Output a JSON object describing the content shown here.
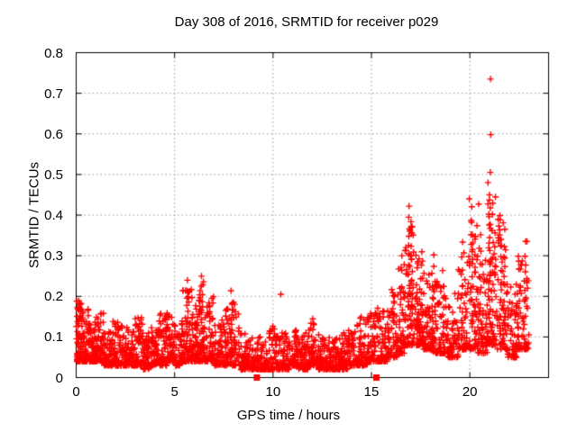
{
  "chart_data": {
    "type": "scatter",
    "title": "Day 308 of 2016, SRMTID for receiver p029",
    "xlabel": "GPS time / hours",
    "ylabel": "SRMTID / TECUs",
    "xlim": [
      0,
      24
    ],
    "ylim": [
      0,
      0.8
    ],
    "x_ticks": [
      {
        "v": 0,
        "label": "0"
      },
      {
        "v": 5,
        "label": "5"
      },
      {
        "v": 10,
        "label": "10"
      },
      {
        "v": 15,
        "label": "15"
      },
      {
        "v": 20,
        "label": "20"
      }
    ],
    "y_ticks": [
      {
        "v": 0.0,
        "label": "0"
      },
      {
        "v": 0.1,
        "label": "0.1"
      },
      {
        "v": 0.2,
        "label": "0.2"
      },
      {
        "v": 0.3,
        "label": "0.3"
      },
      {
        "v": 0.4,
        "label": "0.4"
      },
      {
        "v": 0.5,
        "label": "0.5"
      },
      {
        "v": 0.6,
        "label": "0.6"
      },
      {
        "v": 0.7,
        "label": "0.7"
      },
      {
        "v": 0.8,
        "label": "0.8"
      }
    ],
    "grid": {
      "show": true,
      "style": "dotted",
      "color": "#9a9a9a"
    },
    "frame_color": "#000000",
    "text_color": "#000000",
    "background": "#ffffff",
    "legend": "none",
    "series": [
      {
        "name": "srmtid-scatter",
        "marker": "plus",
        "color": "#ff0000",
        "marker_size": 7,
        "seed": 308,
        "envelope_bins": [
          [
            0.0,
            0.3,
            0.04,
            0.19,
            60
          ],
          [
            0.3,
            0.7,
            0.04,
            0.17,
            65
          ],
          [
            0.7,
            1.0,
            0.04,
            0.14,
            50
          ],
          [
            1.0,
            1.4,
            0.04,
            0.16,
            60
          ],
          [
            1.4,
            1.8,
            0.03,
            0.12,
            55
          ],
          [
            1.8,
            2.2,
            0.03,
            0.14,
            58
          ],
          [
            2.2,
            2.6,
            0.03,
            0.13,
            55
          ],
          [
            2.6,
            3.0,
            0.03,
            0.12,
            55
          ],
          [
            3.0,
            3.4,
            0.03,
            0.15,
            55
          ],
          [
            3.4,
            3.8,
            0.02,
            0.11,
            50
          ],
          [
            3.8,
            4.2,
            0.03,
            0.13,
            55
          ],
          [
            4.2,
            4.6,
            0.03,
            0.17,
            55
          ],
          [
            4.6,
            5.0,
            0.04,
            0.16,
            55
          ],
          [
            5.0,
            5.4,
            0.03,
            0.14,
            50
          ],
          [
            5.4,
            5.9,
            0.04,
            0.22,
            65
          ],
          [
            5.9,
            6.2,
            0.04,
            0.18,
            48
          ],
          [
            6.2,
            6.6,
            0.04,
            0.24,
            58
          ],
          [
            6.6,
            7.0,
            0.04,
            0.2,
            52
          ],
          [
            7.0,
            7.4,
            0.03,
            0.13,
            48
          ],
          [
            7.4,
            7.8,
            0.03,
            0.17,
            52
          ],
          [
            7.8,
            8.3,
            0.03,
            0.19,
            58
          ],
          [
            8.3,
            8.8,
            0.02,
            0.11,
            55
          ],
          [
            8.8,
            9.3,
            0.02,
            0.1,
            55
          ],
          [
            9.3,
            9.8,
            0.02,
            0.1,
            55
          ],
          [
            9.8,
            10.3,
            0.02,
            0.13,
            58
          ],
          [
            10.3,
            10.8,
            0.02,
            0.11,
            58
          ],
          [
            10.8,
            11.3,
            0.03,
            0.12,
            58
          ],
          [
            11.3,
            11.8,
            0.02,
            0.11,
            58
          ],
          [
            11.8,
            12.3,
            0.03,
            0.14,
            58
          ],
          [
            12.3,
            12.8,
            0.02,
            0.11,
            58
          ],
          [
            12.8,
            13.3,
            0.02,
            0.1,
            58
          ],
          [
            13.3,
            13.8,
            0.02,
            0.11,
            55
          ],
          [
            13.8,
            14.3,
            0.03,
            0.13,
            55
          ],
          [
            14.3,
            14.8,
            0.03,
            0.15,
            55
          ],
          [
            14.8,
            15.3,
            0.04,
            0.16,
            58
          ],
          [
            15.3,
            15.8,
            0.04,
            0.18,
            62
          ],
          [
            15.8,
            16.3,
            0.05,
            0.22,
            62
          ],
          [
            16.3,
            16.7,
            0.06,
            0.29,
            58
          ],
          [
            16.7,
            17.2,
            0.08,
            0.4,
            62
          ],
          [
            17.2,
            17.6,
            0.08,
            0.3,
            52
          ],
          [
            17.6,
            18.0,
            0.07,
            0.27,
            48
          ],
          [
            18.0,
            18.4,
            0.06,
            0.28,
            48
          ],
          [
            18.4,
            18.9,
            0.06,
            0.25,
            52
          ],
          [
            18.9,
            19.4,
            0.05,
            0.21,
            52
          ],
          [
            19.4,
            19.9,
            0.07,
            0.32,
            52
          ],
          [
            19.9,
            20.4,
            0.07,
            0.4,
            58
          ],
          [
            20.4,
            20.9,
            0.06,
            0.34,
            58
          ],
          [
            20.9,
            21.4,
            0.08,
            0.45,
            62
          ],
          [
            21.4,
            21.9,
            0.07,
            0.4,
            58
          ],
          [
            21.9,
            22.4,
            0.05,
            0.24,
            58
          ],
          [
            22.4,
            23.0,
            0.07,
            0.32,
            65
          ]
        ],
        "columns": [
          [
            0.15,
            0.19,
            7
          ],
          [
            5.65,
            0.235,
            10
          ],
          [
            6.38,
            0.25,
            9
          ],
          [
            7.9,
            0.21,
            7
          ],
          [
            12.05,
            0.148,
            6
          ],
          [
            16.92,
            0.42,
            13
          ],
          [
            17.05,
            0.385,
            10
          ],
          [
            17.3,
            0.3,
            7
          ],
          [
            17.55,
            0.305,
            8
          ],
          [
            18.2,
            0.3,
            8
          ],
          [
            18.65,
            0.26,
            7
          ],
          [
            19.6,
            0.33,
            8
          ],
          [
            20.1,
            0.415,
            10
          ],
          [
            20.55,
            0.35,
            8
          ],
          [
            21.0,
            0.45,
            12
          ],
          [
            21.15,
            0.43,
            10
          ],
          [
            21.55,
            0.4,
            9
          ],
          [
            21.75,
            0.36,
            7
          ],
          [
            22.8,
            0.33,
            9
          ]
        ],
        "outliers": [
          [
            21.05,
            0.735
          ],
          [
            21.06,
            0.598
          ],
          [
            21.04,
            0.505
          ],
          [
            20.92,
            0.48
          ],
          [
            19.97,
            0.44
          ],
          [
            20.45,
            0.427
          ],
          [
            21.3,
            0.445
          ],
          [
            10.4,
            0.205
          ],
          [
            16.55,
            0.3
          ],
          [
            22.9,
            0.335
          ]
        ]
      },
      {
        "name": "flagged-points",
        "marker": "filled-square",
        "color": "#ff0000",
        "marker_size": 7,
        "points": [
          [
            9.18,
            0
          ],
          [
            15.25,
            0
          ]
        ]
      }
    ]
  }
}
